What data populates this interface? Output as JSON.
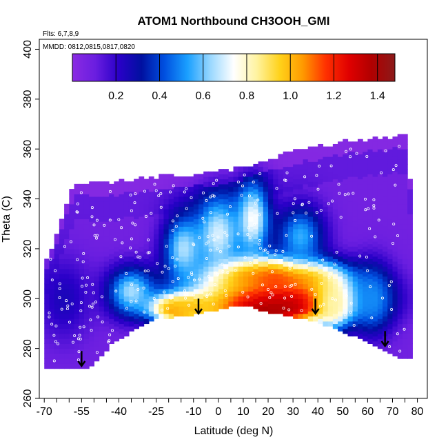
{
  "chart_data": {
    "type": "heatmap",
    "title": "ATOM1 Northbound CH3OOH_GMI",
    "subtitle_lines": [
      "Flts: 6,7,8,9",
      "MMDD: 0812,0815,0817,0820"
    ],
    "xlabel": "Latitude (deg N)",
    "ylabel": "Theta (C)",
    "xlim": [
      -72,
      84
    ],
    "ylim": [
      260,
      404
    ],
    "x_ticks": [
      -70,
      -55,
      -40,
      -25,
      -10,
      0,
      10,
      20,
      30,
      40,
      50,
      60,
      70,
      80
    ],
    "y_ticks": [
      260,
      280,
      300,
      320,
      340,
      360,
      380,
      400
    ],
    "colorbar": {
      "min": 0.0,
      "max": 1.48,
      "ticks": [
        0.2,
        0.4,
        0.6,
        0.8,
        1.0,
        1.2,
        1.4
      ],
      "colors": [
        "#8a2be2",
        "#6a1ee0",
        "#2a00c8",
        "#0010a0",
        "#0050e0",
        "#1aa0ff",
        "#9ad8ff",
        "#ffffff",
        "#fff3a0",
        "#ffd21a",
        "#ff9a00",
        "#ff3000",
        "#e00000",
        "#b00000",
        "#8b1a1a"
      ]
    },
    "grid": false,
    "legend": "colorbar-top",
    "surface_boundary": [
      [
        -70,
        272
      ],
      [
        -52,
        272
      ],
      [
        -43,
        282
      ],
      [
        -35,
        287
      ],
      [
        -25,
        292
      ],
      [
        -10,
        294
      ],
      [
        0,
        296
      ],
      [
        10,
        298
      ],
      [
        20,
        295
      ],
      [
        30,
        293
      ],
      [
        40,
        291
      ],
      [
        50,
        287
      ],
      [
        60,
        283
      ],
      [
        68,
        279
      ],
      [
        74,
        276
      ],
      [
        78,
        276
      ]
    ],
    "top_boundary": [
      [
        -70,
        313
      ],
      [
        -66,
        322
      ],
      [
        -62,
        335
      ],
      [
        -58,
        345
      ],
      [
        -40,
        346
      ],
      [
        -25,
        348
      ],
      [
        -10,
        349
      ],
      [
        0,
        350
      ],
      [
        10,
        352
      ],
      [
        20,
        355
      ],
      [
        30,
        358
      ],
      [
        40,
        360
      ],
      [
        50,
        362
      ],
      [
        60,
        363
      ],
      [
        70,
        364
      ],
      [
        76,
        365
      ],
      [
        78,
        330
      ],
      [
        78,
        276
      ]
    ],
    "arrows": [
      [
        -55,
        279
      ],
      [
        -8,
        300
      ],
      [
        39,
        300
      ],
      [
        67,
        287
      ]
    ],
    "blobs": [
      {
        "x": 23,
        "y": 301,
        "sx": 22,
        "sy": 7,
        "v": 1.35
      },
      {
        "x": 20,
        "y": 296,
        "sx": 18,
        "sy": 4,
        "v": 1.4
      },
      {
        "x": -17,
        "y": 296,
        "sx": 6,
        "sy": 3,
        "v": 1.25
      },
      {
        "x": -12,
        "y": 297,
        "sx": 11,
        "sy": 4,
        "v": 1.0
      },
      {
        "x": 12,
        "y": 309,
        "sx": 12,
        "sy": 5,
        "v": 1.05
      },
      {
        "x": 28,
        "y": 309,
        "sx": 14,
        "sy": 5,
        "v": 1.2
      },
      {
        "x": 46,
        "y": 298,
        "sx": 5,
        "sy": 7,
        "v": 0.85
      },
      {
        "x": -35,
        "y": 303,
        "sx": 7,
        "sy": 7,
        "v": 0.65
      },
      {
        "x": -14,
        "y": 320,
        "sx": 6,
        "sy": 10,
        "v": 0.65
      },
      {
        "x": 0,
        "y": 326,
        "sx": 7,
        "sy": 12,
        "v": 0.7
      },
      {
        "x": 14,
        "y": 332,
        "sx": 5,
        "sy": 11,
        "v": 0.75
      },
      {
        "x": 33,
        "y": 325,
        "sx": 7,
        "sy": 9,
        "v": 0.55
      },
      {
        "x": 62,
        "y": 300,
        "sx": 6,
        "sy": 10,
        "v": 0.5
      },
      {
        "x": -62,
        "y": 300,
        "sx": 8,
        "sy": 12,
        "v": 0.25
      }
    ],
    "flight_track_points": 320
  }
}
